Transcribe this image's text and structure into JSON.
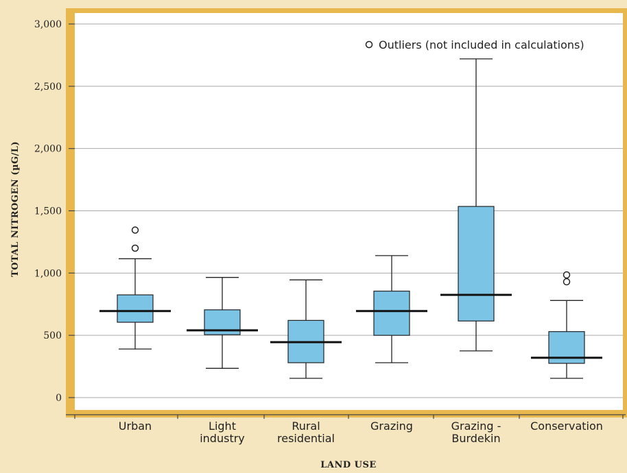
{
  "chart_data": {
    "type": "box",
    "title": "",
    "xlabel": "LAND USE",
    "ylabel": "TOTAL NITROGEN (µG/L)",
    "ylim": [
      0,
      3000
    ],
    "y_ticks": [
      0,
      500,
      1000,
      1500,
      2000,
      2500,
      3000
    ],
    "y_tick_labels": [
      "0",
      "500",
      "1,000",
      "1,500",
      "2,000",
      "2,500",
      "3,000"
    ],
    "grid": true,
    "legend_position": "top-right",
    "legend_label": "Outliers (not included in calculations)",
    "categories": [
      [
        "Urban"
      ],
      [
        "Light",
        "industry"
      ],
      [
        "Rural",
        "residential"
      ],
      [
        "Grazing"
      ],
      [
        "Grazing -",
        "Burdekin"
      ],
      [
        "Conservation"
      ]
    ],
    "series": [
      {
        "whisker_low": 390,
        "q1": 605,
        "median": 695,
        "q3": 825,
        "whisker_high": 1115,
        "outliers": [
          1200,
          1345
        ]
      },
      {
        "whisker_low": 235,
        "q1": 505,
        "median": 540,
        "q3": 705,
        "whisker_high": 965,
        "outliers": []
      },
      {
        "whisker_low": 155,
        "q1": 280,
        "median": 445,
        "q3": 620,
        "whisker_high": 945,
        "outliers": []
      },
      {
        "whisker_low": 280,
        "q1": 500,
        "median": 695,
        "q3": 855,
        "whisker_high": 1140,
        "outliers": []
      },
      {
        "whisker_low": 375,
        "q1": 615,
        "median": 825,
        "q3": 1535,
        "whisker_high": 2720,
        "outliers": []
      },
      {
        "whisker_low": 155,
        "q1": 275,
        "median": 320,
        "q3": 530,
        "whisker_high": 780,
        "outliers": [
          930,
          985
        ]
      }
    ],
    "colors": {
      "background": "#f5e6c0",
      "axis_frame": "#e8b84e",
      "plot_bg": "#ffffff",
      "box_fill": "#7cc4e6",
      "grid": "#a9a9a9"
    }
  }
}
